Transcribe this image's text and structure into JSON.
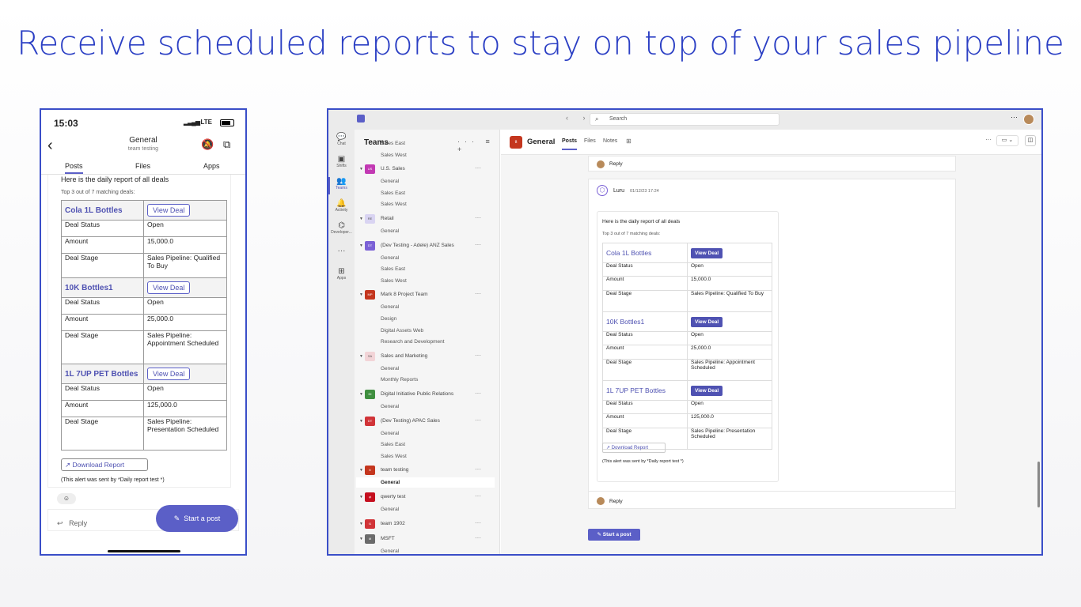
{
  "headline": "Receive scheduled reports to stay on top of your sales pipeline",
  "mobile": {
    "time": "15:03",
    "network": "LTE",
    "channel_title": "General",
    "team_subtitle": "team testing",
    "tabs": [
      "Posts",
      "Files",
      "Apps"
    ],
    "intro": "Here is the daily report of all deals",
    "top3": "Top 3 out of 7 matching deals:",
    "view_deal": "View Deal",
    "download": "↗  Download Report",
    "alert": "(This alert was sent by *Daily report test *)",
    "reply": "Reply",
    "start_post": "Start a post"
  },
  "deals": [
    {
      "name": "Cola 1L Bottles",
      "status": "Open",
      "amount": "15,000.0",
      "stage": "Sales Pipeline: Qualified To Buy"
    },
    {
      "name": "10K Bottles1",
      "status": "Open",
      "amount": "25,000.0",
      "stage": "Sales Pipeline: Appointment Scheduled"
    },
    {
      "name": "1L 7UP PET Bottles",
      "status": "Open",
      "amount": "125,000.0",
      "stage": "Sales Pipeline: Presentation Scheduled"
    }
  ],
  "field_labels": {
    "status": "Deal Status",
    "amount": "Amount",
    "stage": "Deal Stage"
  },
  "desktop": {
    "search_placeholder": "Search",
    "rail": [
      "Chat",
      "Shifts",
      "Teams",
      "Activity",
      "Developer...",
      "Apps"
    ],
    "teams_title": "Teams",
    "teams_list": [
      {
        "type": "chan",
        "label": "Sales East"
      },
      {
        "type": "chan",
        "label": "Sales West"
      },
      {
        "type": "team",
        "label": "U.S. Sales",
        "abbr": "US",
        "color": "#c239b3"
      },
      {
        "type": "chan",
        "label": "General"
      },
      {
        "type": "chan",
        "label": "Sales East"
      },
      {
        "type": "chan",
        "label": "Sales West"
      },
      {
        "type": "team",
        "label": "Retail",
        "abbr": "RE",
        "color": "#d9d4f2"
      },
      {
        "type": "chan",
        "label": "General"
      },
      {
        "type": "team",
        "label": "(Dev Testing - Adele) ANZ Sales",
        "abbr": "DT",
        "color": "#7b61d6"
      },
      {
        "type": "chan",
        "label": "General"
      },
      {
        "type": "chan",
        "label": "Sales East"
      },
      {
        "type": "chan",
        "label": "Sales West"
      },
      {
        "type": "team",
        "label": "Mark 8 Project Team",
        "abbr": "MP",
        "color": "#c4361e"
      },
      {
        "type": "chan",
        "label": "General"
      },
      {
        "type": "chan",
        "label": "Design"
      },
      {
        "type": "chan",
        "label": "Digital Assets Web"
      },
      {
        "type": "chan",
        "label": "Research and Development"
      },
      {
        "type": "team",
        "label": "Sales and Marketing",
        "abbr": "SA",
        "color": "#f2d4d7"
      },
      {
        "type": "chan",
        "label": "General"
      },
      {
        "type": "chan",
        "label": "Monthly Reports"
      },
      {
        "type": "team",
        "label": "Digital Initiative Public Relations",
        "abbr": "DI",
        "color": "#3f8f3f"
      },
      {
        "type": "chan",
        "label": "General"
      },
      {
        "type": "team",
        "label": "(Dev Testing) APAC Sales",
        "abbr": "DT",
        "color": "#d13438"
      },
      {
        "type": "chan",
        "label": "General"
      },
      {
        "type": "chan",
        "label": "Sales East"
      },
      {
        "type": "chan",
        "label": "Sales West"
      },
      {
        "type": "team",
        "label": "team testing",
        "abbr": "tt",
        "color": "#c4361e"
      },
      {
        "type": "chan",
        "label": "General",
        "selected": true
      },
      {
        "type": "team",
        "label": "qwerty test",
        "abbr": "qt",
        "color": "#c50f1f"
      },
      {
        "type": "chan",
        "label": "General"
      },
      {
        "type": "team",
        "label": "team 1902",
        "abbr": "t1",
        "color": "#d13438"
      },
      {
        "type": "team",
        "label": "MSFT",
        "abbr": "M",
        "color": "#6b6b6b"
      },
      {
        "type": "chan",
        "label": "General"
      }
    ],
    "channel_name": "General",
    "channel_abbr": "tt",
    "tabs": [
      "Posts",
      "Files",
      "Notes"
    ],
    "reply": "Reply",
    "bot_name": "Luru",
    "bot_time": "01/12/23 17:24",
    "intro": "Here is the daily report of all deals",
    "top3": "Top 3 out of 7 matching deals:",
    "view_deal": "View Deal",
    "download": "↗  Download Report",
    "alert": "(This alert was sent by *Daily report test *)",
    "start_post": "Start a post"
  }
}
